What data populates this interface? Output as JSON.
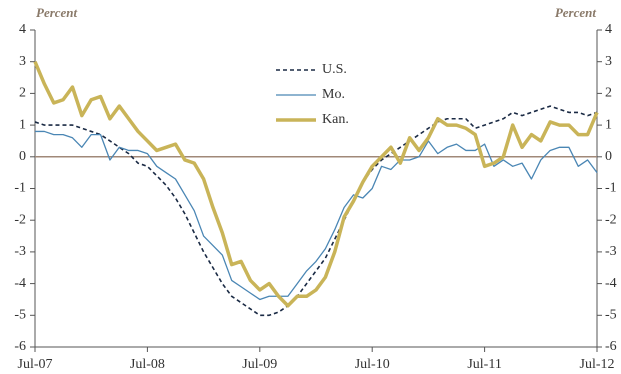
{
  "chart_data": {
    "type": "line",
    "y_label": "Percent",
    "y2_label": "Percent",
    "categories": [
      "Jul-07",
      null,
      null,
      null,
      null,
      null,
      null,
      null,
      null,
      null,
      null,
      null,
      "Jul-08",
      null,
      null,
      null,
      null,
      null,
      null,
      null,
      null,
      null,
      null,
      null,
      "Jul-09",
      null,
      null,
      null,
      null,
      null,
      null,
      null,
      null,
      null,
      null,
      null,
      "Jul-10",
      null,
      null,
      null,
      null,
      null,
      null,
      null,
      null,
      null,
      null,
      null,
      "Jul-11",
      null,
      null,
      null,
      null,
      null,
      null,
      null,
      null,
      null,
      null,
      null,
      "Jul-12"
    ],
    "series": [
      {
        "name": "U.S.",
        "color": "#1a2a44",
        "line_style": "dashed",
        "width": 1.6,
        "values": [
          1.1,
          1.0,
          1.0,
          1.0,
          1.0,
          0.9,
          0.8,
          0.7,
          0.5,
          0.3,
          0.1,
          -0.2,
          -0.3,
          -0.6,
          -0.9,
          -1.3,
          -1.8,
          -2.4,
          -3.0,
          -3.5,
          -4.0,
          -4.4,
          -4.6,
          -4.8,
          -5.0,
          -5.0,
          -4.9,
          -4.7,
          -4.4,
          -4.0,
          -3.6,
          -3.2,
          -2.6,
          -2.0,
          -1.4,
          -0.8,
          -0.4,
          -0.1,
          0.1,
          0.3,
          0.5,
          0.7,
          0.9,
          1.1,
          1.2,
          1.2,
          1.2,
          0.9,
          1.0,
          1.1,
          1.2,
          1.4,
          1.3,
          1.4,
          1.5,
          1.6,
          1.5,
          1.4,
          1.4,
          1.3,
          1.4
        ]
      },
      {
        "name": "Mo.",
        "color": "#4a86b4",
        "line_style": "solid",
        "width": 1.3,
        "values": [
          0.8,
          0.8,
          0.7,
          0.7,
          0.6,
          0.3,
          0.7,
          0.7,
          -0.1,
          0.3,
          0.2,
          0.2,
          0.1,
          -0.3,
          -0.5,
          -0.7,
          -1.2,
          -1.7,
          -2.5,
          -2.8,
          -3.1,
          -3.9,
          -4.1,
          -4.3,
          -4.5,
          -4.4,
          -4.4,
          -4.4,
          -4.0,
          -3.6,
          -3.3,
          -2.9,
          -2.3,
          -1.6,
          -1.2,
          -1.3,
          -1.0,
          -0.3,
          -0.4,
          -0.1,
          -0.1,
          0.0,
          0.5,
          0.1,
          0.3,
          0.4,
          0.2,
          0.2,
          0.4,
          -0.3,
          -0.1,
          -0.3,
          -0.2,
          -0.7,
          -0.1,
          0.2,
          0.3,
          0.3,
          -0.3,
          -0.1,
          -0.5
        ]
      },
      {
        "name": "Kan.",
        "color": "#c9b458",
        "line_style": "solid",
        "width": 3.5,
        "values": [
          3.0,
          2.3,
          1.7,
          1.8,
          2.2,
          1.3,
          1.8,
          1.9,
          1.2,
          1.6,
          1.2,
          0.8,
          0.5,
          0.2,
          0.3,
          0.4,
          -0.1,
          -0.2,
          -0.7,
          -1.6,
          -2.4,
          -3.4,
          -3.3,
          -3.9,
          -4.2,
          -4.0,
          -4.4,
          -4.7,
          -4.4,
          -4.4,
          -4.2,
          -3.8,
          -3.0,
          -1.9,
          -1.4,
          -0.8,
          -0.3,
          0.0,
          0.3,
          -0.2,
          0.6,
          0.2,
          0.6,
          1.2,
          1.0,
          1.0,
          0.9,
          0.7,
          -0.3,
          -0.2,
          0.0,
          1.0,
          0.3,
          0.7,
          0.5,
          1.1,
          1.0,
          1.0,
          0.7,
          0.7,
          1.4
        ]
      }
    ],
    "ylim": [
      -6,
      4
    ],
    "yticks": [
      -6,
      -5,
      -4,
      -3,
      -2,
      -1,
      0,
      1,
      2,
      3,
      4
    ],
    "y2lim": [
      -6,
      4
    ],
    "y2ticks": [
      -6,
      -5,
      -4,
      -3,
      -2,
      -1,
      0,
      1,
      2,
      3,
      4
    ],
    "zero_line_color": "#a08878",
    "legend": "upper center"
  }
}
